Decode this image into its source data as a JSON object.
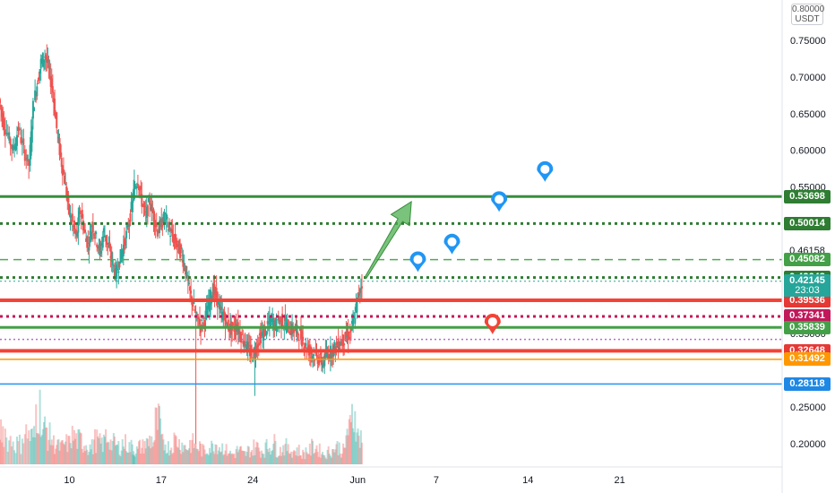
{
  "currency": {
    "top": "0.80000",
    "bottom": "USDT"
  },
  "colors": {
    "green": "#388e3c",
    "dark_green": "#1b5e20",
    "red": "#f44336",
    "crimson": "#c2185b",
    "orange": "#ff9800",
    "blue": "#2196f3",
    "teal": "#26a69a",
    "candle_up": "#26a69a",
    "candle_down": "#ef5350",
    "marker_blue": "#2196f3",
    "marker_red": "#f44336",
    "arrow": "#4caf50"
  },
  "chart_data": {
    "type": "candlestick",
    "price_scale": [
      0.2,
      0.25,
      0.35,
      0.55,
      0.6,
      0.65,
      0.7,
      0.75
    ],
    "price_scale_labels": [
      "0.20000",
      "0.25000",
      "0.35000",
      "0.55000",
      "0.60000",
      "0.65000",
      "0.70000",
      "0.75000"
    ],
    "time_labels": [
      {
        "label": "10",
        "day": 10
      },
      {
        "label": "17",
        "day": 17
      },
      {
        "label": "24",
        "day": 24
      },
      {
        "label": "Jun",
        "day": 32
      },
      {
        "label": "7",
        "day": 38
      },
      {
        "label": "14",
        "day": 45
      },
      {
        "label": "21",
        "day": 52
      }
    ],
    "x_range_days": [
      4.7,
      64.4
    ],
    "y_range": [
      0.168,
      0.805
    ],
    "price_path": [
      [
        4.7,
        0.67
      ],
      [
        5.0,
        0.64
      ],
      [
        5.4,
        0.62
      ],
      [
        5.8,
        0.6
      ],
      [
        6.2,
        0.63
      ],
      [
        6.6,
        0.6
      ],
      [
        7.0,
        0.58
      ],
      [
        7.3,
        0.66
      ],
      [
        7.6,
        0.69
      ],
      [
        7.9,
        0.72
      ],
      [
        8.2,
        0.73
      ],
      [
        8.5,
        0.71
      ],
      [
        8.8,
        0.68
      ],
      [
        9.1,
        0.63
      ],
      [
        9.4,
        0.59
      ],
      [
        9.7,
        0.56
      ],
      [
        10.0,
        0.52
      ],
      [
        10.3,
        0.5
      ],
      [
        10.6,
        0.48
      ],
      [
        10.9,
        0.52
      ],
      [
        11.2,
        0.49
      ],
      [
        11.5,
        0.47
      ],
      [
        11.8,
        0.5
      ],
      [
        12.1,
        0.48
      ],
      [
        12.4,
        0.46
      ],
      [
        12.7,
        0.49
      ],
      [
        13.0,
        0.47
      ],
      [
        13.3,
        0.45
      ],
      [
        13.6,
        0.43
      ],
      [
        13.9,
        0.45
      ],
      [
        14.2,
        0.47
      ],
      [
        14.5,
        0.49
      ],
      [
        14.8,
        0.52
      ],
      [
        15.0,
        0.55
      ],
      [
        15.3,
        0.56
      ],
      [
        15.6,
        0.53
      ],
      [
        15.9,
        0.51
      ],
      [
        16.2,
        0.53
      ],
      [
        16.5,
        0.51
      ],
      [
        16.8,
        0.49
      ],
      [
        17.1,
        0.5
      ],
      [
        17.4,
        0.51
      ],
      [
        17.7,
        0.49
      ],
      [
        18.0,
        0.48
      ],
      [
        18.3,
        0.47
      ],
      [
        18.6,
        0.46
      ],
      [
        18.9,
        0.44
      ],
      [
        19.2,
        0.41
      ],
      [
        19.5,
        0.39
      ],
      [
        19.8,
        0.37
      ],
      [
        20.1,
        0.36
      ],
      [
        20.4,
        0.37
      ],
      [
        20.7,
        0.39
      ],
      [
        21.0,
        0.41
      ],
      [
        21.3,
        0.4
      ],
      [
        21.6,
        0.38
      ],
      [
        21.9,
        0.37
      ],
      [
        22.2,
        0.36
      ],
      [
        22.5,
        0.355
      ],
      [
        22.8,
        0.36
      ],
      [
        23.1,
        0.35
      ],
      [
        23.4,
        0.34
      ],
      [
        23.7,
        0.33
      ],
      [
        24.0,
        0.32
      ],
      [
        24.3,
        0.33
      ],
      [
        24.6,
        0.345
      ],
      [
        24.9,
        0.35
      ],
      [
        25.2,
        0.36
      ],
      [
        25.5,
        0.37
      ],
      [
        25.8,
        0.36
      ],
      [
        26.1,
        0.37
      ],
      [
        26.4,
        0.365
      ],
      [
        26.7,
        0.36
      ],
      [
        27.0,
        0.355
      ],
      [
        27.3,
        0.355
      ],
      [
        27.6,
        0.35
      ],
      [
        27.9,
        0.34
      ],
      [
        28.2,
        0.33
      ],
      [
        28.5,
        0.325
      ],
      [
        28.8,
        0.32
      ],
      [
        29.1,
        0.315
      ],
      [
        29.4,
        0.31
      ],
      [
        29.7,
        0.32
      ],
      [
        30.0,
        0.325
      ],
      [
        30.3,
        0.33
      ],
      [
        30.6,
        0.335
      ],
      [
        30.9,
        0.34
      ],
      [
        31.2,
        0.345
      ],
      [
        31.5,
        0.35
      ],
      [
        31.8,
        0.37
      ],
      [
        32.1,
        0.4
      ],
      [
        32.4,
        0.42
      ]
    ],
    "volume_profile": [
      0.5,
      0.35,
      0.3,
      0.45,
      0.4,
      0.8,
      0.5,
      0.4,
      0.3,
      0.25,
      0.3,
      0.4,
      0.35,
      0.3,
      0.25,
      0.35,
      0.3,
      0.4,
      0.3,
      0.25,
      0.3,
      0.25,
      0.2,
      0.25,
      0.3,
      0.35,
      0.6,
      0.3,
      0.25,
      0.35,
      0.3,
      0.25,
      0.3,
      0.25,
      0.2,
      0.25,
      0.3,
      0.25,
      0.2,
      0.15,
      0.2,
      0.15,
      0.2,
      0.25,
      0.2,
      0.25,
      0.3,
      0.2,
      0.25,
      0.2,
      0.2,
      0.15,
      0.2,
      0.25,
      0.2,
      0.15,
      0.2,
      0.25,
      0.2,
      0.5,
      0.7,
      0.4
    ],
    "horizontal_levels": [
      {
        "price": 0.53698,
        "label": "0.53698",
        "color": "#388e3c",
        "style": "solid",
        "width": 3,
        "tag_color": "#2e7d32"
      },
      {
        "price": 0.50014,
        "label": "0.50014",
        "color": "#2e7d32",
        "style": "dotted",
        "width": 3,
        "tag_color": "#2e7d32"
      },
      {
        "price": 0.46158,
        "label": "0.46158",
        "color": "",
        "style": "none",
        "width": 0,
        "tag_color": ""
      },
      {
        "price": 0.45082,
        "label": "0.45082",
        "color": "#4caf50",
        "style": "dashed",
        "width": 1.5,
        "tag_color": "#43a047"
      },
      {
        "price": 0.42643,
        "label": "0.42643",
        "color": "#2e7d32",
        "style": "dotted",
        "width": 3,
        "tag_color": "#2e7d32"
      },
      {
        "price": 0.42145,
        "label": "0.42145",
        "color": "#26a69a",
        "style": "dotted-thin",
        "width": 1,
        "tag_color": "#26a69a"
      },
      {
        "price": 0.39536,
        "label": "0.39536",
        "color": "#f44336",
        "style": "solid",
        "width": 4,
        "tag_color": "#e53935"
      },
      {
        "price": 0.37341,
        "label": "0.37341",
        "color": "#c2185b",
        "style": "dotted",
        "width": 3,
        "tag_color": "#c2185b"
      },
      {
        "price": 0.35839,
        "label": "0.35839",
        "color": "#43a047",
        "style": "solid",
        "width": 3,
        "tag_color": "#43a047"
      },
      {
        "price": 0.342,
        "label": "",
        "color": "#ba68c8",
        "style": "dotted-thin",
        "width": 1.5,
        "tag_color": ""
      },
      {
        "price": 0.32648,
        "label": "0.32648",
        "color": "#f44336",
        "style": "solid",
        "width": 4,
        "tag_color": "#e53935"
      },
      {
        "price": 0.31492,
        "label": "0.31492",
        "color": "#ff9800",
        "style": "solid",
        "width": 1.5,
        "tag_color": "#ff9800"
      },
      {
        "price": 0.28118,
        "label": "0.28118",
        "color": "#2196f3",
        "style": "solid",
        "width": 1.5,
        "tag_color": "#1e88e5"
      }
    ],
    "countdown": {
      "text": "23:03",
      "price": 0.4089,
      "color": "#26a69a"
    },
    "arrow": {
      "from": [
        32.6,
        0.426
      ],
      "to": [
        36.1,
        0.53
      ],
      "color": "#4caf50"
    },
    "markers": [
      {
        "day": 36.6,
        "price": 0.434,
        "color": "#2196f3"
      },
      {
        "day": 39.2,
        "price": 0.458,
        "color": "#2196f3"
      },
      {
        "day": 42.8,
        "price": 0.516,
        "color": "#2196f3"
      },
      {
        "day": 46.3,
        "price": 0.557,
        "color": "#2196f3"
      },
      {
        "day": 42.3,
        "price": 0.349,
        "color": "#f44336"
      }
    ]
  }
}
